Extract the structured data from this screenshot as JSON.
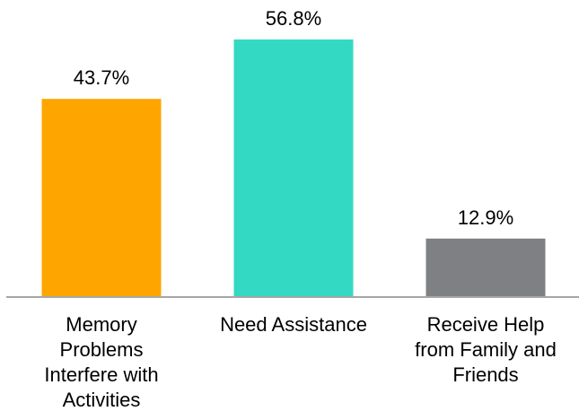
{
  "chart_data": {
    "type": "bar",
    "categories": [
      [
        "Memory",
        "Problems",
        "Interfere with",
        "Activities"
      ],
      [
        "Need Assistance"
      ],
      [
        "Receive Help",
        "from Family and",
        "Friends"
      ]
    ],
    "values": [
      43.7,
      56.8,
      12.9
    ],
    "data_labels": [
      "43.7%",
      "56.8%",
      "12.9%"
    ],
    "colors": [
      "#FFA500",
      "#33D9C3",
      "#7F8083"
    ],
    "axis_color": "#A6A6A6",
    "ylim": [
      0,
      56.8
    ],
    "grid": false,
    "legend": "none",
    "title": "",
    "xlabel": "",
    "ylabel": ""
  }
}
